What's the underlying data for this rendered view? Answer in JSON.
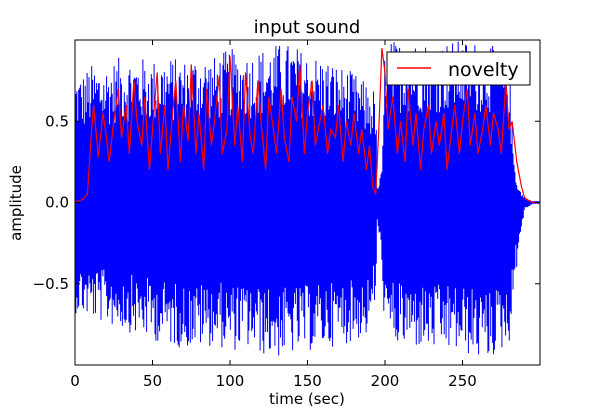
{
  "chart_data": {
    "type": "line",
    "title": "input sound",
    "xlabel": "time (sec)",
    "ylabel": "amplitude",
    "xlim": [
      0,
      300
    ],
    "ylim": [
      -1.0,
      1.0
    ],
    "xticks": [
      0,
      50,
      100,
      150,
      200,
      250
    ],
    "xtick_labels": [
      "0",
      "50",
      "100",
      "150",
      "200",
      "250"
    ],
    "yticks": [
      -0.5,
      0.0,
      0.5
    ],
    "ytick_labels": [
      "−0.5",
      "0.0",
      "0.5"
    ],
    "grid": false,
    "legend_position": "top-right",
    "series": [
      {
        "color": "#0000ff",
        "style": "filled-envelope",
        "x": [
          0,
          5,
          10,
          20,
          30,
          40,
          50,
          60,
          70,
          80,
          90,
          100,
          110,
          120,
          130,
          140,
          150,
          160,
          170,
          180,
          190,
          194,
          195,
          198,
          200,
          205,
          210,
          220,
          230,
          240,
          250,
          260,
          268,
          270,
          275,
          280,
          283,
          286,
          290,
          295,
          300
        ],
        "upper": [
          0.8,
          0.8,
          0.85,
          0.85,
          0.9,
          0.9,
          0.88,
          0.9,
          0.88,
          0.92,
          0.9,
          0.95,
          0.92,
          0.95,
          0.98,
          0.98,
          0.92,
          0.9,
          0.85,
          0.8,
          0.72,
          0.7,
          0.1,
          0.2,
          1.0,
          1.0,
          1.0,
          1.0,
          1.0,
          1.0,
          1.0,
          1.0,
          1.0,
          0.95,
          0.95,
          0.9,
          0.3,
          0.1,
          0.03,
          0.01,
          0.01
        ],
        "lower": [
          -0.68,
          -0.7,
          -0.72,
          -0.75,
          -0.78,
          -0.82,
          -0.85,
          -0.88,
          -0.9,
          -0.9,
          -0.88,
          -0.92,
          -0.9,
          -0.94,
          -0.96,
          -0.94,
          -0.92,
          -0.9,
          -0.88,
          -0.86,
          -0.82,
          -0.6,
          -0.15,
          -0.4,
          -0.86,
          -0.88,
          -0.9,
          -0.9,
          -0.92,
          -0.92,
          -0.93,
          -0.97,
          -0.98,
          -0.95,
          -0.92,
          -0.88,
          -0.6,
          -0.3,
          -0.05,
          -0.01,
          -0.01
        ]
      },
      {
        "name": "novelty",
        "color": "#ff0000",
        "x": [
          0,
          5,
          8,
          10,
          12,
          15,
          18,
          20,
          22,
          25,
          28,
          30,
          33,
          35,
          38,
          40,
          43,
          45,
          48,
          50,
          53,
          55,
          58,
          60,
          63,
          65,
          68,
          70,
          73,
          75,
          78,
          80,
          83,
          85,
          88,
          90,
          93,
          95,
          98,
          100,
          103,
          105,
          108,
          110,
          113,
          115,
          118,
          120,
          123,
          125,
          128,
          130,
          133,
          135,
          138,
          140,
          143,
          145,
          148,
          150,
          153,
          155,
          158,
          160,
          163,
          165,
          168,
          170,
          173,
          175,
          178,
          180,
          183,
          185,
          188,
          190,
          192,
          194,
          196,
          198,
          200,
          202,
          205,
          208,
          210,
          213,
          215,
          218,
          220,
          223,
          225,
          228,
          230,
          233,
          235,
          238,
          240,
          243,
          245,
          248,
          250,
          253,
          255,
          258,
          260,
          263,
          265,
          268,
          270,
          273,
          275,
          278,
          280,
          282,
          285,
          288,
          290,
          293,
          296,
          300
        ],
        "y": [
          0.0,
          0.02,
          0.05,
          0.35,
          0.6,
          0.28,
          0.55,
          0.42,
          0.25,
          0.5,
          0.7,
          0.4,
          0.6,
          0.3,
          0.75,
          0.5,
          0.35,
          0.65,
          0.2,
          0.45,
          0.8,
          0.3,
          0.6,
          0.2,
          0.55,
          0.75,
          0.25,
          0.6,
          0.38,
          0.85,
          0.3,
          0.55,
          0.2,
          0.7,
          0.35,
          0.5,
          0.78,
          0.3,
          0.45,
          0.9,
          0.35,
          0.6,
          0.25,
          0.8,
          0.4,
          0.3,
          0.75,
          0.5,
          0.2,
          0.65,
          0.45,
          0.3,
          0.7,
          0.4,
          0.25,
          0.65,
          0.5,
          0.85,
          0.3,
          0.55,
          0.75,
          0.35,
          0.5,
          0.6,
          0.3,
          0.45,
          0.4,
          0.6,
          0.25,
          0.5,
          0.35,
          0.55,
          0.3,
          0.45,
          0.2,
          0.35,
          0.1,
          0.05,
          0.45,
          0.95,
          0.8,
          0.45,
          0.65,
          0.3,
          0.5,
          0.25,
          0.7,
          0.35,
          0.55,
          0.2,
          0.45,
          0.6,
          0.3,
          0.5,
          0.35,
          0.55,
          0.2,
          0.45,
          0.6,
          0.3,
          0.5,
          0.7,
          0.35,
          0.55,
          0.3,
          0.45,
          0.6,
          0.35,
          0.55,
          0.45,
          0.3,
          0.75,
          0.45,
          0.5,
          0.25,
          0.1,
          0.03,
          0.01,
          0.0,
          0.0
        ]
      }
    ]
  }
}
